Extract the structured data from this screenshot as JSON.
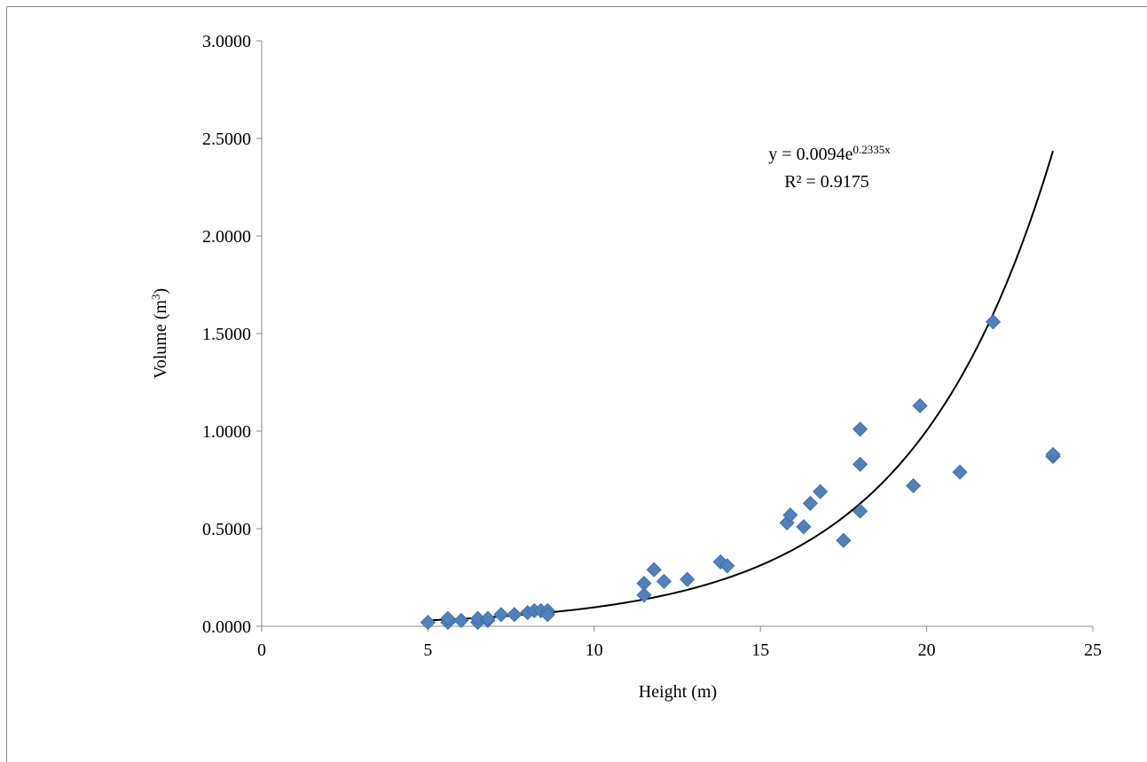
{
  "chart_data": {
    "type": "scatter",
    "xlabel": "Height (m)",
    "ylabel_main": "Volume (m",
    "ylabel_sup": "3",
    "ylabel_close": ")",
    "xlim": [
      0,
      25
    ],
    "ylim": [
      0,
      3
    ],
    "x_ticks": [
      "0",
      "5",
      "10",
      "15",
      "20",
      "25"
    ],
    "y_ticks": [
      "0.0000",
      "0.5000",
      "1.0000",
      "1.5000",
      "2.0000",
      "2.5000",
      "3.0000"
    ],
    "grid": false,
    "marker_color": "#4f81bd",
    "trendline": {
      "type": "exponential",
      "a": 0.0094,
      "b": 0.2335,
      "x_range": [
        5,
        23.8
      ],
      "color": "#000000",
      "equation_prefix": "y = 0.0094e",
      "equation_exponent": "0.2335x",
      "r_squared_label": "R² = 0.9175"
    },
    "points": [
      [
        5.0,
        0.02
      ],
      [
        5.6,
        0.02
      ],
      [
        5.6,
        0.04
      ],
      [
        6.0,
        0.03
      ],
      [
        6.5,
        0.02
      ],
      [
        6.5,
        0.04
      ],
      [
        6.8,
        0.03
      ],
      [
        6.8,
        0.04
      ],
      [
        7.2,
        0.06
      ],
      [
        7.6,
        0.06
      ],
      [
        8.0,
        0.07
      ],
      [
        8.2,
        0.08
      ],
      [
        8.4,
        0.08
      ],
      [
        8.6,
        0.08
      ],
      [
        8.6,
        0.06
      ],
      [
        11.5,
        0.16
      ],
      [
        11.5,
        0.22
      ],
      [
        11.8,
        0.29
      ],
      [
        12.1,
        0.23
      ],
      [
        12.8,
        0.24
      ],
      [
        13.8,
        0.33
      ],
      [
        14.0,
        0.31
      ],
      [
        15.8,
        0.53
      ],
      [
        15.9,
        0.57
      ],
      [
        16.3,
        0.51
      ],
      [
        16.5,
        0.63
      ],
      [
        16.8,
        0.69
      ],
      [
        17.5,
        0.44
      ],
      [
        18.0,
        0.59
      ],
      [
        18.0,
        0.83
      ],
      [
        18.0,
        1.01
      ],
      [
        19.6,
        0.72
      ],
      [
        19.8,
        1.13
      ],
      [
        21.0,
        0.79
      ],
      [
        22.0,
        1.56
      ],
      [
        23.8,
        0.87
      ],
      [
        23.8,
        0.88
      ]
    ]
  }
}
